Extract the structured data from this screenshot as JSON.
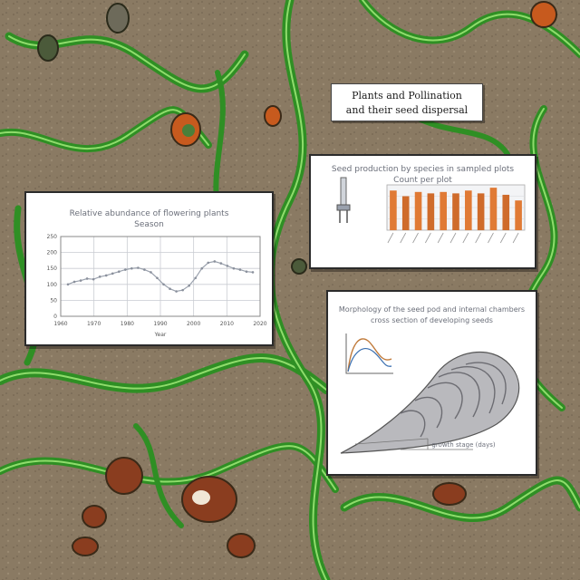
{
  "note": {
    "line1": "Plants and Pollination",
    "line2": "and their seed dispersal"
  },
  "line_chart": {
    "title_line1": "Relative abundance of flowering plants",
    "title_line2": "Season",
    "ylabel": "",
    "xlabel": "Year",
    "yticks": [
      "250",
      "200",
      "150",
      "100",
      "50",
      "0"
    ],
    "xticks": [
      "1960",
      "1970",
      "1980",
      "1990",
      "2000",
      "2010",
      "2020"
    ],
    "chart_data": {
      "type": "line",
      "x": [
        0,
        1,
        2,
        3,
        4,
        5,
        6,
        7,
        8,
        9,
        10,
        11,
        12,
        13,
        14,
        15,
        16,
        17,
        18,
        19,
        20,
        21,
        22,
        23,
        24,
        25,
        26,
        27,
        28,
        29
      ],
      "series": [
        {
          "values": [
            100,
            108,
            112,
            118,
            116,
            124,
            128,
            134,
            140,
            146,
            150,
            152,
            146,
            138,
            120,
            100,
            86,
            78,
            82,
            96,
            120,
            150,
            168,
            172,
            166,
            158,
            150,
            146,
            140,
            138
          ]
        }
      ],
      "ylim": [
        0,
        250
      ],
      "grid": true
    }
  },
  "bar_chart": {
    "title_line1": "Seed production by species in sampled plots",
    "title_line2": "Count per plot",
    "chart_data": {
      "type": "bar",
      "values": [
        28,
        24,
        27,
        26,
        27,
        26,
        28,
        26,
        30,
        25,
        21
      ],
      "ylim": [
        0,
        32
      ],
      "colors": [
        "#e07a35",
        "#cf6b2b"
      ]
    }
  },
  "diagram_panel": {
    "title_line1": "Morphology of the seed pod and internal chambers",
    "title_line2": "cross section of developing seeds",
    "axis_caption": "growth stage (days)"
  },
  "colors": {
    "soil": "#8a7a63",
    "vine": "#3fa32e",
    "vine_highlight": "#9be07a",
    "seed": "#8a3d1f",
    "line_series": "#9aa1ad",
    "bar": "#e07a35"
  }
}
